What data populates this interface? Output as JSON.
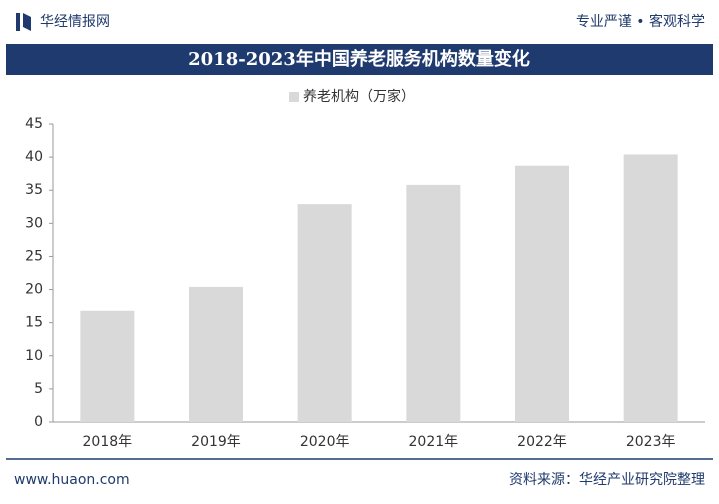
{
  "header": {
    "brand": "华经情报网",
    "slogan": "专业严谨 • 客观科学"
  },
  "chart_data": {
    "type": "bar",
    "title": "2018-2023年中国养老服务机构数量变化",
    "categories": [
      "2018年",
      "2019年",
      "2020年",
      "2021年",
      "2022年",
      "2023年"
    ],
    "series": [
      {
        "name": "养老机构（万家）",
        "color": "#d9d9d9",
        "values": [
          16.8,
          20.4,
          32.9,
          35.8,
          38.7,
          40.4
        ]
      }
    ],
    "ylim": [
      0,
      45
    ],
    "yticks": [
      0,
      5,
      10,
      15,
      20,
      25,
      30,
      35,
      40,
      45
    ]
  },
  "footer": {
    "website": "www.huaon.com",
    "source": "资料来源：华经产业研究院整理"
  }
}
